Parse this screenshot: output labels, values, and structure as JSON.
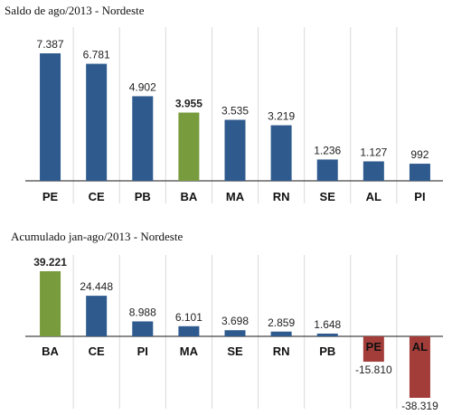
{
  "colors": {
    "default_bar": "#2E5A8E",
    "highlight_bar": "#779B3D",
    "negative_bar": "#A33D3A",
    "gridline": "#DADADA"
  },
  "chart_data": [
    {
      "type": "bar",
      "title": "Saldo de ago/2013 - Nordeste",
      "categories": [
        "PE",
        "CE",
        "PB",
        "BA",
        "MA",
        "RN",
        "SE",
        "AL",
        "PI"
      ],
      "values": [
        7387,
        6781,
        4902,
        3955,
        3535,
        3219,
        1236,
        1127,
        992
      ],
      "value_labels": [
        "7.387",
        "6.781",
        "4.902",
        "3.955",
        "3.535",
        "3.219",
        "1.236",
        "1.127",
        "992"
      ],
      "highlight": "BA",
      "ylim": [
        0,
        7387
      ],
      "grid": "vertical separators"
    },
    {
      "type": "bar",
      "title": "Acumulado jan-ago/2013 - Nordeste",
      "categories": [
        "BA",
        "CE",
        "PI",
        "MA",
        "SE",
        "RN",
        "PB",
        "PE",
        "AL"
      ],
      "values": [
        39221,
        24448,
        8988,
        6101,
        3698,
        2859,
        1648,
        -15810,
        -38319
      ],
      "value_labels": [
        "39.221",
        "24.448",
        "8.988",
        "6.101",
        "3.698",
        "2.859",
        "1.648",
        "-15.810",
        "-38.319"
      ],
      "highlight": "BA",
      "ylim": [
        -38319,
        39221
      ],
      "grid": "vertical separators"
    }
  ]
}
